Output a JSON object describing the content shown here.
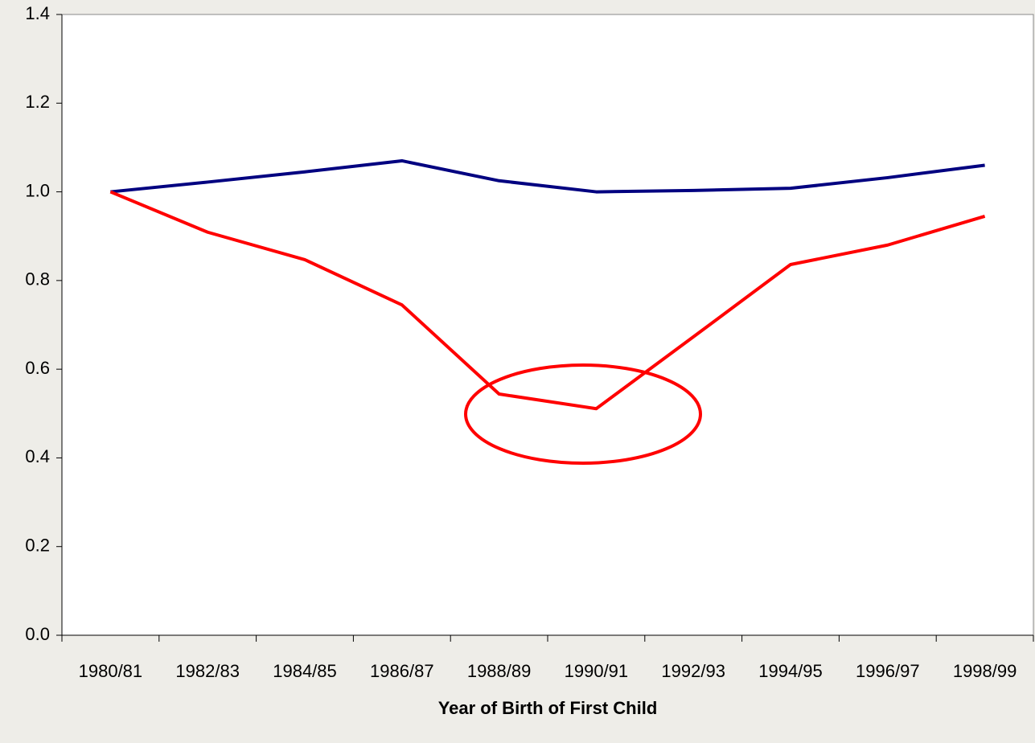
{
  "chart_data": {
    "type": "line",
    "x_label": "Year of Birth of First Child",
    "categories": [
      "1980/81",
      "1982/83",
      "1984/85",
      "1986/87",
      "1988/89",
      "1990/91",
      "1992/93",
      "1994/95",
      "1996/97",
      "1998/99"
    ],
    "series": [
      {
        "color": "#000080",
        "values": [
          1.0,
          1.022,
          1.045,
          1.07,
          1.025,
          1.0,
          1.003,
          1.008,
          1.032,
          1.06
        ]
      },
      {
        "color": "#ff0000",
        "values": [
          1.0,
          0.909,
          0.847,
          0.745,
          0.544,
          0.511,
          0.673,
          0.836,
          0.88,
          0.945
        ]
      }
    ],
    "ylim": [
      0,
      1.4
    ],
    "yticks": [
      {
        "value": 0,
        "label": "0.0"
      },
      0.2,
      0.4,
      0.6,
      0.8,
      {
        "value": 1,
        "label": "1.0"
      },
      1.2,
      1.4
    ]
  }
}
